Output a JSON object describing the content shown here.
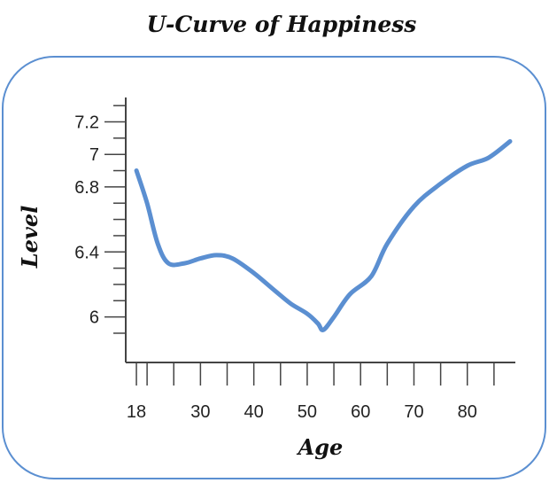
{
  "chart_data": {
    "type": "line",
    "title": "U-Curve of Happiness",
    "xlabel": "Age",
    "ylabel": "Level",
    "xlim": [
      16,
      89
    ],
    "ylim": [
      5.72,
      7.35
    ],
    "x_ticks": [
      18,
      30,
      40,
      50,
      60,
      70,
      80
    ],
    "y_ticks": [
      {
        "value": 7.2,
        "label": "7.2"
      },
      {
        "value": 7.0,
        "label": "7"
      },
      {
        "value": 6.8,
        "label": "6.8"
      },
      {
        "value": 6.4,
        "label": "6.4"
      },
      {
        "value": 6.0,
        "label": "6"
      }
    ],
    "grid": false,
    "colors": {
      "line": "#5b8fd1",
      "frame": "#5b8fd1",
      "axis": "#444444"
    },
    "series": [
      {
        "x": [
          18,
          20,
          22,
          24,
          27,
          30,
          33,
          36,
          40,
          44,
          47,
          50,
          52,
          53,
          55,
          58,
          62,
          65,
          70,
          75,
          80,
          84,
          88
        ],
        "y": [
          6.9,
          6.7,
          6.45,
          6.33,
          6.33,
          6.36,
          6.38,
          6.36,
          6.27,
          6.16,
          6.08,
          6.02,
          5.96,
          5.92,
          6.0,
          6.14,
          6.25,
          6.45,
          6.68,
          6.82,
          6.93,
          6.98,
          7.08
        ]
      }
    ]
  }
}
